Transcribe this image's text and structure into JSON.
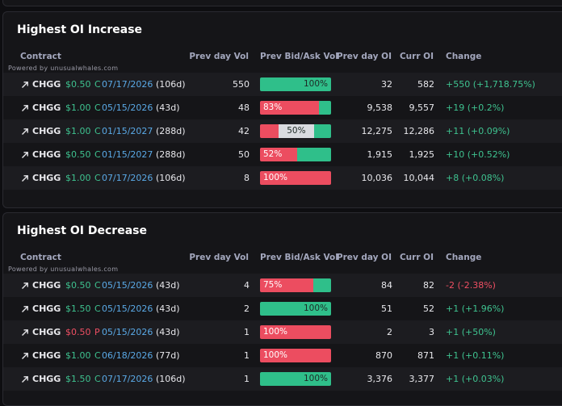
{
  "colors": {
    "C": "#3ec28f",
    "P": "#ef4f63",
    "positive": "#3ec28f",
    "negative": "#ef4f63",
    "bid": "#ec4d60",
    "mid": "#d9dbe0",
    "ask": "#2fbf8a"
  },
  "panels": [
    {
      "title": "Highest OI Increase",
      "powered_by": "Powered by unusualwhales.com",
      "columns": [
        "Contract",
        "Prev day Vol",
        "Prev Bid/Ask Vol",
        "Prev day OI",
        "Curr OI",
        "Change"
      ],
      "rows": [
        {
          "ticker": "CHGG",
          "strike": "$0.50",
          "side": "C",
          "expiry": "07/17/2026",
          "dte": "(106d)",
          "prev_vol": "550",
          "bid_ask": {
            "bid": 0,
            "mid": 0,
            "ask": 100,
            "label": "100%"
          },
          "prev_oi": "32",
          "curr_oi": "582",
          "change": "+550 (+1,718.75%)",
          "trend": "positive"
        },
        {
          "ticker": "CHGG",
          "strike": "$1.00",
          "side": "C",
          "expiry": "05/15/2026",
          "dte": "(43d)",
          "prev_vol": "48",
          "bid_ask": {
            "bid": 83,
            "mid": 0,
            "ask": 17,
            "label": "83%"
          },
          "prev_oi": "9,538",
          "curr_oi": "9,557",
          "change": "+19 (+0.2%)",
          "trend": "positive"
        },
        {
          "ticker": "CHGG",
          "strike": "$1.00",
          "side": "C",
          "expiry": "01/15/2027",
          "dte": "(288d)",
          "prev_vol": "42",
          "bid_ask": {
            "bid": 26,
            "mid": 50,
            "ask": 24,
            "label": "50%"
          },
          "prev_oi": "12,275",
          "curr_oi": "12,286",
          "change": "+11 (+0.09%)",
          "trend": "positive"
        },
        {
          "ticker": "CHGG",
          "strike": "$0.50",
          "side": "C",
          "expiry": "01/15/2027",
          "dte": "(288d)",
          "prev_vol": "50",
          "bid_ask": {
            "bid": 52,
            "mid": 0,
            "ask": 48,
            "label": "52%"
          },
          "prev_oi": "1,915",
          "curr_oi": "1,925",
          "change": "+10 (+0.52%)",
          "trend": "positive"
        },
        {
          "ticker": "CHGG",
          "strike": "$1.00",
          "side": "C",
          "expiry": "07/17/2026",
          "dte": "(106d)",
          "prev_vol": "8",
          "bid_ask": {
            "bid": 100,
            "mid": 0,
            "ask": 0,
            "label": "100%"
          },
          "prev_oi": "10,036",
          "curr_oi": "10,044",
          "change": "+8 (+0.08%)",
          "trend": "positive"
        }
      ]
    },
    {
      "title": "Highest OI Decrease",
      "powered_by": "Powered by unusualwhales.com",
      "columns": [
        "Contract",
        "Prev day Vol",
        "Prev Bid/Ask Vol",
        "Prev day OI",
        "Curr OI",
        "Change"
      ],
      "rows": [
        {
          "ticker": "CHGG",
          "strike": "$0.50",
          "side": "C",
          "expiry": "05/15/2026",
          "dte": "(43d)",
          "prev_vol": "4",
          "bid_ask": {
            "bid": 75,
            "mid": 0,
            "ask": 25,
            "label": "75%"
          },
          "prev_oi": "84",
          "curr_oi": "82",
          "change": "-2 (-2.38%)",
          "trend": "negative"
        },
        {
          "ticker": "CHGG",
          "strike": "$1.50",
          "side": "C",
          "expiry": "05/15/2026",
          "dte": "(43d)",
          "prev_vol": "2",
          "bid_ask": {
            "bid": 0,
            "mid": 0,
            "ask": 100,
            "label": "100%"
          },
          "prev_oi": "51",
          "curr_oi": "52",
          "change": "+1 (+1.96%)",
          "trend": "positive"
        },
        {
          "ticker": "CHGG",
          "strike": "$0.50",
          "side": "P",
          "expiry": "05/15/2026",
          "dte": "(43d)",
          "prev_vol": "1",
          "bid_ask": {
            "bid": 100,
            "mid": 0,
            "ask": 0,
            "label": "100%"
          },
          "prev_oi": "2",
          "curr_oi": "3",
          "change": "+1 (+50%)",
          "trend": "positive"
        },
        {
          "ticker": "CHGG",
          "strike": "$1.00",
          "side": "C",
          "expiry": "06/18/2026",
          "dte": "(77d)",
          "prev_vol": "1",
          "bid_ask": {
            "bid": 100,
            "mid": 0,
            "ask": 0,
            "label": "100%"
          },
          "prev_oi": "870",
          "curr_oi": "871",
          "change": "+1 (+0.11%)",
          "trend": "positive"
        },
        {
          "ticker": "CHGG",
          "strike": "$1.50",
          "side": "C",
          "expiry": "07/17/2026",
          "dte": "(106d)",
          "prev_vol": "1",
          "bid_ask": {
            "bid": 0,
            "mid": 0,
            "ask": 100,
            "label": "100%"
          },
          "prev_oi": "3,376",
          "curr_oi": "3,377",
          "change": "+1 (+0.03%)",
          "trend": "positive"
        }
      ]
    }
  ]
}
